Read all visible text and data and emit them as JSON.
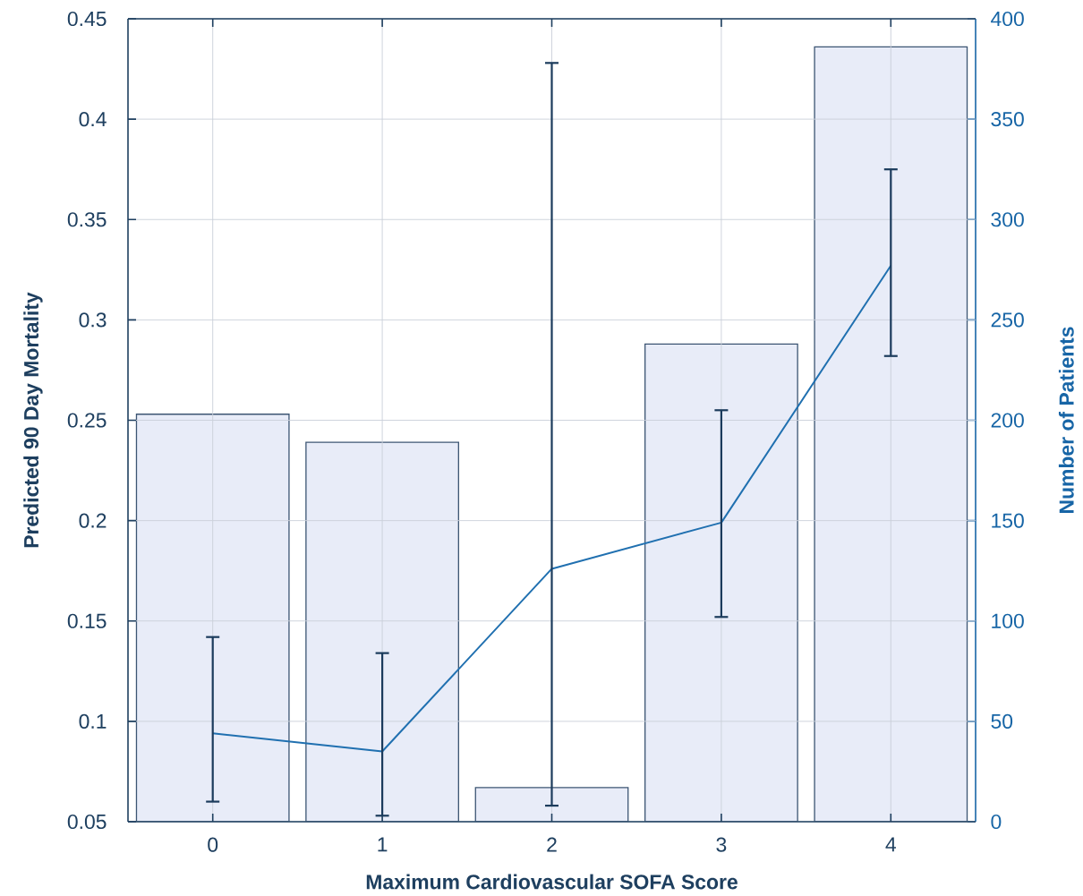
{
  "chart_data": {
    "type": "bar",
    "xlabel": "Maximum Cardiovascular SOFA Score",
    "ylabel": "Predicted 90 Day Mortality",
    "y2label": "Number of Patients",
    "categories": [
      "0",
      "1",
      "2",
      "3",
      "4"
    ],
    "ylim": [
      0.05,
      0.45
    ],
    "yticks": [
      0.05,
      0.1,
      0.15,
      0.2,
      0.25,
      0.3,
      0.35,
      0.4,
      0.45
    ],
    "y2lim": [
      0,
      400
    ],
    "y2ticks": [
      0,
      50,
      100,
      150,
      200,
      250,
      300,
      350,
      400
    ],
    "grid": true,
    "series": [
      {
        "axis": "y2",
        "color": "#e8ecf8",
        "values": [
          203,
          189,
          17,
          238,
          386
        ]
      },
      {
        "type": "line",
        "axis": "y",
        "color": "#2070b0",
        "values": [
          0.094,
          0.085,
          0.176,
          0.199,
          0.327
        ],
        "errors": [
          [
            0.06,
            0.142
          ],
          [
            0.053,
            0.134
          ],
          [
            0.058,
            0.428
          ],
          [
            0.152,
            0.255
          ],
          [
            0.282,
            0.375
          ]
        ]
      }
    ]
  }
}
